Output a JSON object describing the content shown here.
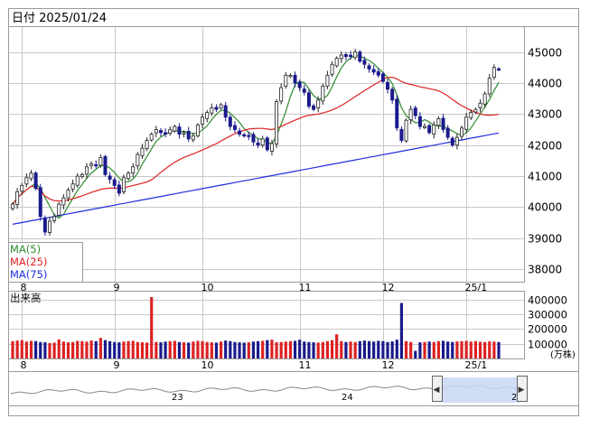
{
  "header": {
    "date_label": "日付 2025/01/24"
  },
  "colors": {
    "frame": "#9a9a9a",
    "grid": "#c8c8c8",
    "up_candle": "#ffffff",
    "down_candle": "#1a1a8c",
    "ma5": "#2e8b2e",
    "ma25": "#dd2222",
    "ma75": "#1f2fdd",
    "vol_up": "#dd2222",
    "vol_down": "#1a1a8c",
    "navigator_fill": "#c8d7f5",
    "navigator_line": "#888888"
  },
  "legend": [
    {
      "label": "MA(5)",
      "color": "#2e8b2e"
    },
    {
      "label": "MA(25)",
      "color": "#dd2222"
    },
    {
      "label": "MA(75)",
      "color": "#1f2fdd"
    }
  ],
  "volume_section": {
    "title": "出来高",
    "unit": "(万株)"
  },
  "navigator": {
    "labels": [
      "23",
      "24",
      "2"
    ],
    "left_handle": "◀",
    "right_handle": "▶"
  },
  "chart_data": [
    {
      "type": "candlestick",
      "ylim": [
        37600,
        45800
      ],
      "y_ticks": [
        38000,
        39000,
        40000,
        41000,
        42000,
        43000,
        44000,
        45000
      ],
      "x_month_labels": [
        {
          "label": "8",
          "index": 2
        },
        {
          "label": "9",
          "index": 22
        },
        {
          "label": "10",
          "index": 41
        },
        {
          "label": "11",
          "index": 62
        },
        {
          "label": "12",
          "index": 80
        },
        {
          "label": "25/1",
          "index": 98
        }
      ],
      "series_ma": [
        {
          "name": "MA(5)",
          "period": 5
        },
        {
          "name": "MA(25)",
          "period": 25
        },
        {
          "name": "MA(75)",
          "period": 75
        }
      ],
      "closes": [
        40100,
        40500,
        40700,
        40950,
        41100,
        40600,
        39700,
        39200,
        39550,
        39700,
        40100,
        40300,
        40550,
        40750,
        41000,
        41050,
        41300,
        41400,
        41350,
        41600,
        41050,
        40900,
        40700,
        40450,
        40950,
        41100,
        41300,
        41700,
        41900,
        42150,
        42350,
        42500,
        42400,
        42350,
        42500,
        42600,
        42350,
        42400,
        42200,
        42300,
        42650,
        42900,
        43050,
        43200,
        43150,
        43300,
        42900,
        42600,
        42500,
        42350,
        42300,
        42300,
        42100,
        42000,
        42200,
        41850,
        42050,
        43400,
        43850,
        44250,
        44250,
        44000,
        43850,
        43700,
        43250,
        43150,
        43450,
        43900,
        44250,
        44600,
        44800,
        44900,
        44850,
        44850,
        45000,
        44700,
        44600,
        44450,
        44350,
        44250,
        44050,
        43800,
        43450,
        42550,
        42150,
        42800,
        43150,
        42950,
        42600,
        42600,
        42400,
        42650,
        42850,
        42500,
        42250,
        42000,
        42250,
        42550,
        42900,
        43050,
        43150,
        43350,
        43650,
        44150,
        44500,
        44450
      ],
      "volumes": [
        118,
        122,
        125,
        115,
        120,
        118,
        112,
        110,
        105,
        108,
        130,
        115,
        110,
        112,
        120,
        118,
        115,
        122,
        118,
        140,
        125,
        118,
        112,
        110,
        115,
        118,
        120,
        112,
        110,
        108,
        418,
        112,
        110,
        115,
        118,
        120,
        112,
        110,
        108,
        115,
        120,
        118,
        112,
        110,
        108,
        115,
        122,
        118,
        112,
        110,
        108,
        110,
        115,
        118,
        120,
        125,
        128,
        110,
        112,
        115,
        118,
        120,
        128,
        115,
        112,
        110,
        108,
        112,
        118,
        125,
        165,
        118,
        112,
        115,
        112,
        118,
        122,
        118,
        115,
        120,
        118,
        112,
        116,
        128,
        378,
        118,
        112,
        52,
        110,
        112,
        115,
        112,
        118,
        120,
        115,
        112,
        116,
        118,
        120,
        115,
        118,
        114,
        112,
        116,
        115,
        112
      ],
      "volume_ylim": [
        0,
        455
      ],
      "volume_ticks": [
        100000,
        200000,
        300000,
        400000
      ]
    }
  ]
}
